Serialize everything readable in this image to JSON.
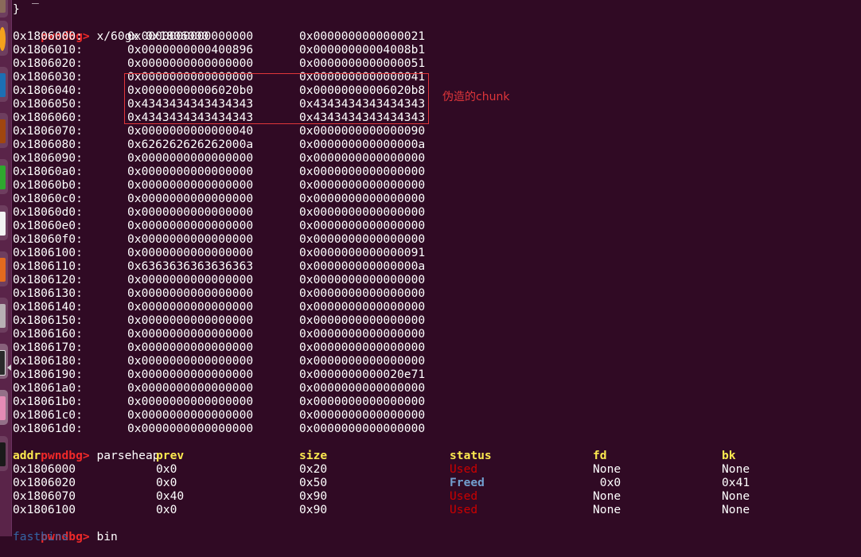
{
  "terminal": {
    "prompt": "pwndbg>",
    "top_partial_line": "_",
    "closing_brace": "}",
    "commands": {
      "examine": "x/60gx 0x1806000",
      "parseheap": "parseheap",
      "bin": "bin"
    },
    "memory_dump": [
      {
        "addr": "0x1806000:",
        "v1": "0x0000000000000000",
        "v2": "0x0000000000000021"
      },
      {
        "addr": "0x1806010:",
        "v1": "0x0000000000400896",
        "v2": "0x00000000004008b1"
      },
      {
        "addr": "0x1806020:",
        "v1": "0x0000000000000000",
        "v2": "0x0000000000000051"
      },
      {
        "addr": "0x1806030:",
        "v1": "0x0000000000000000",
        "v2": "0x0000000000000041"
      },
      {
        "addr": "0x1806040:",
        "v1": "0x00000000006020b0",
        "v2": "0x00000000006020b8"
      },
      {
        "addr": "0x1806050:",
        "v1": "0x4343434343434343",
        "v2": "0x4343434343434343"
      },
      {
        "addr": "0x1806060:",
        "v1": "0x4343434343434343",
        "v2": "0x4343434343434343"
      },
      {
        "addr": "0x1806070:",
        "v1": "0x0000000000000040",
        "v2": "0x0000000000000090"
      },
      {
        "addr": "0x1806080:",
        "v1": "0x626262626262000a",
        "v2": "0x000000000000000a"
      },
      {
        "addr": "0x1806090:",
        "v1": "0x0000000000000000",
        "v2": "0x0000000000000000"
      },
      {
        "addr": "0x18060a0:",
        "v1": "0x0000000000000000",
        "v2": "0x0000000000000000"
      },
      {
        "addr": "0x18060b0:",
        "v1": "0x0000000000000000",
        "v2": "0x0000000000000000"
      },
      {
        "addr": "0x18060c0:",
        "v1": "0x0000000000000000",
        "v2": "0x0000000000000000"
      },
      {
        "addr": "0x18060d0:",
        "v1": "0x0000000000000000",
        "v2": "0x0000000000000000"
      },
      {
        "addr": "0x18060e0:",
        "v1": "0x0000000000000000",
        "v2": "0x0000000000000000"
      },
      {
        "addr": "0x18060f0:",
        "v1": "0x0000000000000000",
        "v2": "0x0000000000000000"
      },
      {
        "addr": "0x1806100:",
        "v1": "0x0000000000000000",
        "v2": "0x0000000000000091"
      },
      {
        "addr": "0x1806110:",
        "v1": "0x6363636363636363",
        "v2": "0x000000000000000a"
      },
      {
        "addr": "0x1806120:",
        "v1": "0x0000000000000000",
        "v2": "0x0000000000000000"
      },
      {
        "addr": "0x1806130:",
        "v1": "0x0000000000000000",
        "v2": "0x0000000000000000"
      },
      {
        "addr": "0x1806140:",
        "v1": "0x0000000000000000",
        "v2": "0x0000000000000000"
      },
      {
        "addr": "0x1806150:",
        "v1": "0x0000000000000000",
        "v2": "0x0000000000000000"
      },
      {
        "addr": "0x1806160:",
        "v1": "0x0000000000000000",
        "v2": "0x0000000000000000"
      },
      {
        "addr": "0x1806170:",
        "v1": "0x0000000000000000",
        "v2": "0x0000000000000000"
      },
      {
        "addr": "0x1806180:",
        "v1": "0x0000000000000000",
        "v2": "0x0000000000000000"
      },
      {
        "addr": "0x1806190:",
        "v1": "0x0000000000000000",
        "v2": "0x0000000000020e71"
      },
      {
        "addr": "0x18061a0:",
        "v1": "0x0000000000000000",
        "v2": "0x0000000000000000"
      },
      {
        "addr": "0x18061b0:",
        "v1": "0x0000000000000000",
        "v2": "0x0000000000000000"
      },
      {
        "addr": "0x18061c0:",
        "v1": "0x0000000000000000",
        "v2": "0x0000000000000000"
      },
      {
        "addr": "0x18061d0:",
        "v1": "0x0000000000000000",
        "v2": "0x0000000000000000"
      }
    ],
    "annotation": {
      "label": "伪造的chunk",
      "color": "#e0363a"
    },
    "parseheap": {
      "headers": [
        "addr",
        "prev",
        "size",
        "status",
        "fd",
        "bk"
      ],
      "rows": [
        {
          "addr": "0x1806000",
          "prev": "0x0",
          "size": "0x20",
          "status": "Used",
          "fd": "None",
          "bk": "None"
        },
        {
          "addr": "0x1806020",
          "prev": "0x0",
          "size": "0x50",
          "status": "Freed",
          "fd": " 0x0",
          "bk": "0x41"
        },
        {
          "addr": "0x1806070",
          "prev": "0x40",
          "size": "0x90",
          "status": "Used",
          "fd": "None",
          "bk": "None"
        },
        {
          "addr": "0x1806100",
          "prev": "0x0",
          "size": "0x90",
          "status": "Used",
          "fd": "None",
          "bk": "None"
        }
      ]
    },
    "bin_output_partial": "fastbins",
    "colors": {
      "background": "#300a24",
      "prompt": "#ef2929",
      "header": "#fce94f",
      "used": "#cc0000",
      "freed": "#729fcf"
    }
  }
}
